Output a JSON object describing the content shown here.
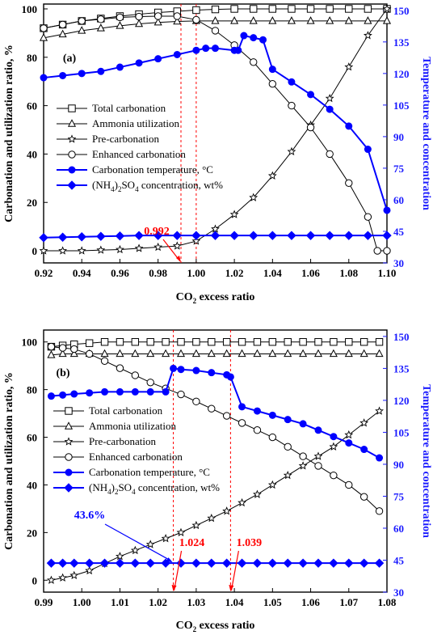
{
  "chart_data": [
    {
      "type": "line",
      "panel_label": "(a)",
      "xlabel_prefix": "CO",
      "xlabel_sub": "2",
      "xlabel_suffix": " excess ratio",
      "ylabel": "Carbonation and utilization ratio, %",
      "y2label": "Temperature and concentration",
      "xlim": [
        0.92,
        1.1
      ],
      "ylim": [
        -5,
        102
      ],
      "y2lim": [
        30,
        153
      ],
      "xticks": [
        "0.92",
        "0.94",
        "0.96",
        "0.98",
        "1.00",
        "1.02",
        "1.04",
        "1.06",
        "1.08",
        "1.10"
      ],
      "yticks": [
        "0",
        "20",
        "40",
        "60",
        "80",
        "100"
      ],
      "y2ticks": [
        "30",
        "45",
        "60",
        "75",
        "90",
        "105",
        "120",
        "135",
        "150"
      ],
      "vlines": [
        0.992,
        1.0
      ],
      "annotation": {
        "text": "0.992",
        "target_x": 0.992,
        "color": "#ff0000"
      },
      "legend": [
        {
          "label": "Total carbonation",
          "marker": "square"
        },
        {
          "label": "Ammonia utilization",
          "marker": "triangle"
        },
        {
          "label": "Pre-carbonation",
          "marker": "star"
        },
        {
          "label": "Enhanced carbonation",
          "marker": "circle"
        },
        {
          "label": "Carbonation temperature, °C",
          "marker": "filled-circle"
        },
        {
          "label_pre": "(NH",
          "label_sub1": "4",
          "label_mid": ")",
          "label_sub2": "2",
          "label_post": "SO",
          "label_sub3": "4",
          "label_end": " concentration, wt%",
          "marker": "filled-diamond"
        }
      ],
      "series": [
        {
          "name": "Total carbonation",
          "axis": "left",
          "marker": "square",
          "color": "#000000",
          "x": [
            0.92,
            0.93,
            0.94,
            0.95,
            0.96,
            0.97,
            0.98,
            0.99,
            1.0,
            1.01,
            1.02,
            1.03,
            1.04,
            1.05,
            1.06,
            1.07,
            1.08,
            1.09,
            1.1
          ],
          "y": [
            92,
            93.5,
            95,
            96,
            97,
            97.8,
            98.5,
            99,
            99.5,
            99.8,
            100,
            100,
            100,
            100,
            100,
            100,
            100,
            100,
            100
          ]
        },
        {
          "name": "Ammonia utilization",
          "axis": "left",
          "marker": "triangle",
          "color": "#000000",
          "x": [
            0.92,
            0.93,
            0.94,
            0.95,
            0.96,
            0.97,
            0.98,
            0.99,
            1.0,
            1.01,
            1.02,
            1.03,
            1.04,
            1.05,
            1.06,
            1.07,
            1.08,
            1.09,
            1.1
          ],
          "y": [
            88,
            89.5,
            91,
            92,
            93,
            93.8,
            94.4,
            94.8,
            95,
            95,
            95,
            95,
            95,
            95,
            95,
            95,
            95,
            95,
            95
          ]
        },
        {
          "name": "Pre-carbonation",
          "axis": "left",
          "marker": "star",
          "color": "#000000",
          "x": [
            0.92,
            0.93,
            0.94,
            0.95,
            0.96,
            0.97,
            0.98,
            0.99,
            1.0,
            1.01,
            1.02,
            1.03,
            1.04,
            1.05,
            1.06,
            1.07,
            1.08,
            1.09,
            1.1
          ],
          "y": [
            0,
            0,
            0,
            0.3,
            0.5,
            1,
            1.5,
            2,
            4,
            9,
            15,
            22,
            31,
            41,
            52,
            63,
            76,
            89,
            100
          ]
        },
        {
          "name": "Enhanced carbonation",
          "axis": "left",
          "marker": "circle",
          "color": "#000000",
          "x": [
            0.92,
            0.93,
            0.94,
            0.95,
            0.96,
            0.97,
            0.98,
            0.99,
            1.0,
            1.01,
            1.02,
            1.03,
            1.04,
            1.05,
            1.06,
            1.07,
            1.08,
            1.09,
            1.095,
            1.1
          ],
          "y": [
            92,
            93.5,
            95,
            95.7,
            96.5,
            96.8,
            97,
            97,
            95.5,
            91,
            85,
            78,
            69,
            60,
            51,
            40,
            28,
            14,
            0,
            0
          ]
        },
        {
          "name": "Carbonation temperature, °C",
          "axis": "right",
          "marker": "filled-circle",
          "color": "#0000ff",
          "x": [
            0.92,
            0.93,
            0.94,
            0.95,
            0.96,
            0.97,
            0.98,
            0.99,
            1.0,
            1.005,
            1.01,
            1.02,
            1.022,
            1.025,
            1.03,
            1.035,
            1.04,
            1.05,
            1.06,
            1.07,
            1.08,
            1.09,
            1.1
          ],
          "y": [
            118,
            119,
            120,
            121,
            123,
            125,
            127,
            129,
            131,
            132,
            132,
            131,
            131,
            138,
            137,
            136,
            122,
            116,
            110,
            103,
            95,
            84,
            55
          ]
        },
        {
          "name": "(NH4)2SO4 concentration, wt%",
          "axis": "right",
          "marker": "filled-diamond",
          "color": "#0000ff",
          "x": [
            0.92,
            0.93,
            0.94,
            0.95,
            0.96,
            0.97,
            0.98,
            0.99,
            1.0,
            1.01,
            1.02,
            1.03,
            1.04,
            1.05,
            1.06,
            1.07,
            1.08,
            1.09,
            1.1
          ],
          "y": [
            42,
            42.2,
            42.4,
            42.6,
            42.8,
            43,
            43,
            43,
            43,
            43,
            43,
            43,
            43,
            43,
            43,
            43,
            43,
            43,
            43
          ]
        }
      ]
    },
    {
      "type": "line",
      "panel_label": "(b)",
      "xlabel_prefix": "CO",
      "xlabel_sub": "2",
      "xlabel_suffix": " excess ratio",
      "ylabel": "Carbonation and utilization ratio, %",
      "y2label": "Temperature and concentration",
      "xlim": [
        0.99,
        1.08
      ],
      "ylim": [
        -5,
        105
      ],
      "y2lim": [
        30,
        153
      ],
      "xticks": [
        "0.99",
        "1.00",
        "1.01",
        "1.02",
        "1.03",
        "1.04",
        "1.05",
        "1.06",
        "1.07",
        "1.08"
      ],
      "yticks": [
        "0",
        "20",
        "40",
        "60",
        "80",
        "100"
      ],
      "y2ticks": [
        "30",
        "45",
        "60",
        "75",
        "90",
        "105",
        "120",
        "135",
        "150"
      ],
      "vlines": [
        1.024,
        1.039
      ],
      "annotations": [
        {
          "text": "43.6%",
          "target_x": 1.024,
          "color": "#0000ff"
        },
        {
          "text": "1.024",
          "target_x": 1.024,
          "color": "#ff0000"
        },
        {
          "text": "1.039",
          "target_x": 1.039,
          "color": "#ff0000"
        }
      ],
      "legend": [
        {
          "label": "Total carbonation",
          "marker": "square"
        },
        {
          "label": "Ammonia utilization",
          "marker": "triangle"
        },
        {
          "label": "Pre-carbonation",
          "marker": "star"
        },
        {
          "label": "Enhanced carbonation",
          "marker": "circle"
        },
        {
          "label": "Carbonation temperature, °C",
          "marker": "filled-circle"
        },
        {
          "label_pre": "(NH",
          "label_sub1": "4",
          "label_mid": ")",
          "label_sub2": "2",
          "label_post": "SO",
          "label_sub3": "4",
          "label_end": " concentration, wt%",
          "marker": "filled-diamond"
        }
      ],
      "series": [
        {
          "name": "Total carbonation",
          "axis": "left",
          "marker": "square",
          "color": "#000000",
          "x": [
            0.992,
            0.995,
            0.998,
            1.002,
            1.006,
            1.01,
            1.014,
            1.018,
            1.022,
            1.026,
            1.03,
            1.034,
            1.038,
            1.042,
            1.046,
            1.05,
            1.054,
            1.058,
            1.062,
            1.066,
            1.07,
            1.074,
            1.078
          ],
          "y": [
            98,
            98.5,
            99,
            99.5,
            100,
            100,
            100,
            100,
            100,
            100,
            100,
            100,
            100,
            100,
            100,
            100,
            100,
            100,
            100,
            100,
            100,
            100,
            100
          ]
        },
        {
          "name": "Ammonia utilization",
          "axis": "left",
          "marker": "triangle",
          "color": "#000000",
          "x": [
            0.992,
            0.995,
            0.998,
            1.002,
            1.006,
            1.01,
            1.014,
            1.018,
            1.022,
            1.026,
            1.03,
            1.034,
            1.038,
            1.042,
            1.046,
            1.05,
            1.054,
            1.058,
            1.062,
            1.066,
            1.07,
            1.074,
            1.078
          ],
          "y": [
            94.5,
            95,
            95,
            95,
            95,
            95,
            95,
            95,
            95,
            95,
            95,
            95,
            95,
            95,
            95,
            95,
            95,
            95,
            95,
            95,
            95,
            95,
            95
          ]
        },
        {
          "name": "Pre-carbonation",
          "axis": "left",
          "marker": "star",
          "color": "#000000",
          "x": [
            0.992,
            0.995,
            0.998,
            1.002,
            1.006,
            1.01,
            1.014,
            1.018,
            1.022,
            1.026,
            1.03,
            1.034,
            1.038,
            1.042,
            1.046,
            1.05,
            1.054,
            1.058,
            1.062,
            1.066,
            1.07,
            1.074,
            1.078
          ],
          "y": [
            0,
            1,
            2,
            4,
            7,
            10,
            12.5,
            15,
            17.5,
            20,
            23,
            26,
            29,
            32.5,
            36,
            40,
            44,
            48,
            52,
            56,
            61,
            66,
            71
          ]
        },
        {
          "name": "Enhanced carbonation",
          "axis": "left",
          "marker": "circle",
          "color": "#000000",
          "x": [
            0.992,
            0.995,
            0.998,
            1.002,
            1.006,
            1.01,
            1.014,
            1.018,
            1.022,
            1.026,
            1.03,
            1.034,
            1.038,
            1.042,
            1.046,
            1.05,
            1.054,
            1.058,
            1.062,
            1.066,
            1.07,
            1.074,
            1.078
          ],
          "y": [
            98,
            97.5,
            97,
            95,
            92,
            89,
            86,
            83,
            80.5,
            78,
            75,
            72,
            69,
            66,
            63,
            60,
            56,
            52,
            48,
            44,
            40,
            35,
            29
          ]
        },
        {
          "name": "Carbonation temperature, °C",
          "axis": "right",
          "marker": "filled-circle",
          "color": "#0000ff",
          "x": [
            0.992,
            0.995,
            0.998,
            1.002,
            1.006,
            1.01,
            1.014,
            1.018,
            1.022,
            1.024,
            1.026,
            1.03,
            1.034,
            1.038,
            1.039,
            1.042,
            1.046,
            1.05,
            1.054,
            1.058,
            1.062,
            1.066,
            1.07,
            1.074,
            1.078
          ],
          "y": [
            122,
            122.5,
            123,
            123.5,
            124,
            124,
            124,
            124,
            124,
            135,
            134.5,
            134,
            133,
            132,
            131,
            117,
            115,
            113,
            111,
            109,
            106,
            103,
            100,
            97,
            93
          ]
        },
        {
          "name": "(NH4)2SO4 concentration, wt%",
          "axis": "right",
          "marker": "filled-diamond",
          "color": "#0000ff",
          "x": [
            0.992,
            0.995,
            0.998,
            1.002,
            1.006,
            1.01,
            1.014,
            1.018,
            1.022,
            1.026,
            1.03,
            1.034,
            1.038,
            1.042,
            1.046,
            1.05,
            1.054,
            1.058,
            1.062,
            1.066,
            1.07,
            1.074,
            1.078
          ],
          "y": [
            43.6,
            43.6,
            43.6,
            43.6,
            43.6,
            43.6,
            43.6,
            43.6,
            43.6,
            43.6,
            43.6,
            43.6,
            43.6,
            43.6,
            43.6,
            43.6,
            43.6,
            43.6,
            43.6,
            43.6,
            43.6,
            43.6,
            43.6
          ]
        }
      ]
    }
  ]
}
